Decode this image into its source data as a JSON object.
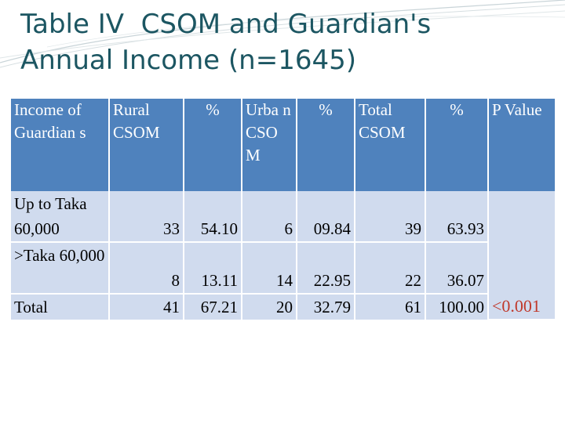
{
  "title_line1": "Table IV  CSOM and Guardian's",
  "title_line2": "Annual Income (n=1645)",
  "colors": {
    "title": "#1c5662",
    "header_bg": "#4f82bd",
    "row_bg": "#d0dbee",
    "p_value": "#c0392b"
  },
  "table": {
    "headers": {
      "income": "Income of Guardian s",
      "rural": "Rural CSOM",
      "pct1": "%",
      "urban": "Urba n CSO M",
      "pct2": "%",
      "total": "Total CSOM",
      "pct3": "%",
      "p": "P Value"
    },
    "rows": [
      {
        "label": "Up to Taka 60,000",
        "rural": "33",
        "rural_pct": "54.10",
        "urban": "6",
        "urban_pct": "09.84",
        "total": "39",
        "total_pct": "63.93"
      },
      {
        "label": ">Taka 60,000",
        "rural": "8",
        "rural_pct": "13.11",
        "urban": "14",
        "urban_pct": "22.95",
        "total": "22",
        "total_pct": "36.07"
      },
      {
        "label": "Total",
        "rural": "41",
        "rural_pct": "67.21",
        "urban": "20",
        "urban_pct": "32.79",
        "total": "61",
        "total_pct": "100.00"
      }
    ],
    "p_value": "<0.001"
  }
}
